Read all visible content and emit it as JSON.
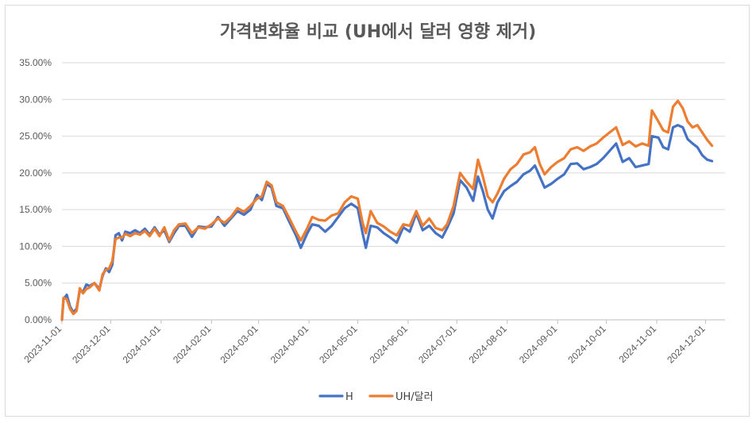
{
  "chart_data": {
    "type": "line",
    "title": "가격변화율 비교 (UH에서 달러 영향 제거)",
    "xlabel": "",
    "ylabel": "",
    "ylim": [
      0,
      0.35
    ],
    "yticks": [
      "0.00%",
      "5.00%",
      "10.00%",
      "15.00%",
      "20.00%",
      "25.00%",
      "30.00%",
      "35.00%"
    ],
    "xticks": [
      "2023-11-01",
      "2023-12-01",
      "2024-01-01",
      "2024-02-01",
      "2024-03-01",
      "2024-04-01",
      "2024-05-01",
      "2024-06-01",
      "2024-07-01",
      "2024-08-01",
      "2024-09-01",
      "2024-10-01",
      "2024-11-01",
      "2024-12-01"
    ],
    "xlim": [
      "2023-11-01",
      "2024-12-13"
    ],
    "grid": true,
    "legend_position": "bottom",
    "series": [
      {
        "name": "H",
        "color": "#4472C4",
        "points": [
          [
            "2023-11-01",
            0.0
          ],
          [
            "2023-11-02",
            0.028
          ],
          [
            "2023-11-04",
            0.034
          ],
          [
            "2023-11-06",
            0.018
          ],
          [
            "2023-11-08",
            0.01
          ],
          [
            "2023-11-10",
            0.015
          ],
          [
            "2023-11-12",
            0.04
          ],
          [
            "2023-11-14",
            0.038
          ],
          [
            "2023-11-16",
            0.048
          ],
          [
            "2023-11-18",
            0.046
          ],
          [
            "2023-11-21",
            0.05
          ],
          [
            "2023-11-24",
            0.042
          ],
          [
            "2023-11-26",
            0.06
          ],
          [
            "2023-11-28",
            0.07
          ],
          [
            "2023-11-30",
            0.065
          ],
          [
            "2023-12-02",
            0.075
          ],
          [
            "2023-12-04",
            0.115
          ],
          [
            "2023-12-06",
            0.118
          ],
          [
            "2023-12-08",
            0.108
          ],
          [
            "2023-12-10",
            0.12
          ],
          [
            "2023-12-13",
            0.118
          ],
          [
            "2023-12-16",
            0.122
          ],
          [
            "2023-12-19",
            0.118
          ],
          [
            "2023-12-22",
            0.124
          ],
          [
            "2023-12-25",
            0.116
          ],
          [
            "2023-12-28",
            0.126
          ],
          [
            "2023-12-31",
            0.116
          ],
          [
            "2024-01-03",
            0.122
          ],
          [
            "2024-01-06",
            0.106
          ],
          [
            "2024-01-09",
            0.118
          ],
          [
            "2024-01-12",
            0.128
          ],
          [
            "2024-01-16",
            0.128
          ],
          [
            "2024-01-20",
            0.113
          ],
          [
            "2024-01-24",
            0.127
          ],
          [
            "2024-01-28",
            0.126
          ],
          [
            "2024-02-01",
            0.127
          ],
          [
            "2024-02-05",
            0.14
          ],
          [
            "2024-02-09",
            0.128
          ],
          [
            "2024-02-13",
            0.138
          ],
          [
            "2024-02-17",
            0.148
          ],
          [
            "2024-02-21",
            0.143
          ],
          [
            "2024-02-25",
            0.15
          ],
          [
            "2024-02-29",
            0.17
          ],
          [
            "2024-03-03",
            0.163
          ],
          [
            "2024-03-06",
            0.185
          ],
          [
            "2024-03-09",
            0.18
          ],
          [
            "2024-03-12",
            0.155
          ],
          [
            "2024-03-16",
            0.152
          ],
          [
            "2024-03-20",
            0.133
          ],
          [
            "2024-03-24",
            0.115
          ],
          [
            "2024-03-27",
            0.098
          ],
          [
            "2024-03-31",
            0.118
          ],
          [
            "2024-04-03",
            0.13
          ],
          [
            "2024-04-07",
            0.128
          ],
          [
            "2024-04-11",
            0.12
          ],
          [
            "2024-04-15",
            0.128
          ],
          [
            "2024-04-19",
            0.14
          ],
          [
            "2024-04-23",
            0.152
          ],
          [
            "2024-04-27",
            0.158
          ],
          [
            "2024-05-01",
            0.152
          ],
          [
            "2024-05-04",
            0.118
          ],
          [
            "2024-05-06",
            0.098
          ],
          [
            "2024-05-09",
            0.128
          ],
          [
            "2024-05-13",
            0.126
          ],
          [
            "2024-05-17",
            0.118
          ],
          [
            "2024-05-21",
            0.112
          ],
          [
            "2024-05-25",
            0.105
          ],
          [
            "2024-05-29",
            0.126
          ],
          [
            "2024-06-02",
            0.12
          ],
          [
            "2024-06-06",
            0.145
          ],
          [
            "2024-06-10",
            0.122
          ],
          [
            "2024-06-14",
            0.128
          ],
          [
            "2024-06-18",
            0.118
          ],
          [
            "2024-06-22",
            0.112
          ],
          [
            "2024-06-25",
            0.125
          ],
          [
            "2024-06-29",
            0.145
          ],
          [
            "2024-07-03",
            0.19
          ],
          [
            "2024-07-07",
            0.18
          ],
          [
            "2024-07-11",
            0.162
          ],
          [
            "2024-07-14",
            0.195
          ],
          [
            "2024-07-17",
            0.175
          ],
          [
            "2024-07-20",
            0.15
          ],
          [
            "2024-07-23",
            0.138
          ],
          [
            "2024-07-26",
            0.16
          ],
          [
            "2024-07-30",
            0.175
          ],
          [
            "2024-08-03",
            0.182
          ],
          [
            "2024-08-07",
            0.188
          ],
          [
            "2024-08-11",
            0.198
          ],
          [
            "2024-08-15",
            0.203
          ],
          [
            "2024-08-18",
            0.21
          ],
          [
            "2024-08-21",
            0.195
          ],
          [
            "2024-08-24",
            0.18
          ],
          [
            "2024-08-28",
            0.185
          ],
          [
            "2024-09-01",
            0.192
          ],
          [
            "2024-09-05",
            0.198
          ],
          [
            "2024-09-09",
            0.212
          ],
          [
            "2024-09-13",
            0.213
          ],
          [
            "2024-09-17",
            0.205
          ],
          [
            "2024-09-21",
            0.208
          ],
          [
            "2024-09-25",
            0.212
          ],
          [
            "2024-09-29",
            0.22
          ],
          [
            "2024-10-03",
            0.23
          ],
          [
            "2024-10-07",
            0.24
          ],
          [
            "2024-10-11",
            0.215
          ],
          [
            "2024-10-15",
            0.22
          ],
          [
            "2024-10-19",
            0.208
          ],
          [
            "2024-10-23",
            0.21
          ],
          [
            "2024-10-27",
            0.212
          ],
          [
            "2024-10-29",
            0.25
          ],
          [
            "2024-11-02",
            0.248
          ],
          [
            "2024-11-05",
            0.235
          ],
          [
            "2024-11-08",
            0.232
          ],
          [
            "2024-11-11",
            0.262
          ],
          [
            "2024-11-14",
            0.265
          ],
          [
            "2024-11-17",
            0.262
          ],
          [
            "2024-11-20",
            0.246
          ],
          [
            "2024-11-23",
            0.24
          ],
          [
            "2024-11-26",
            0.235
          ],
          [
            "2024-11-29",
            0.224
          ],
          [
            "2024-12-02",
            0.218
          ],
          [
            "2024-12-05",
            0.216
          ]
        ]
      },
      {
        "name": "UH/달러",
        "color": "#ED7D31",
        "points": [
          [
            "2023-11-01",
            0.0
          ],
          [
            "2023-11-02",
            0.03
          ],
          [
            "2023-11-04",
            0.028
          ],
          [
            "2023-11-06",
            0.015
          ],
          [
            "2023-11-08",
            0.008
          ],
          [
            "2023-11-10",
            0.012
          ],
          [
            "2023-11-12",
            0.043
          ],
          [
            "2023-11-14",
            0.036
          ],
          [
            "2023-11-16",
            0.042
          ],
          [
            "2023-11-18",
            0.044
          ],
          [
            "2023-11-21",
            0.05
          ],
          [
            "2023-11-24",
            0.04
          ],
          [
            "2023-11-26",
            0.062
          ],
          [
            "2023-11-28",
            0.068
          ],
          [
            "2023-11-30",
            0.07
          ],
          [
            "2023-12-02",
            0.08
          ],
          [
            "2023-12-04",
            0.11
          ],
          [
            "2023-12-06",
            0.112
          ],
          [
            "2023-12-08",
            0.112
          ],
          [
            "2023-12-10",
            0.117
          ],
          [
            "2023-12-13",
            0.114
          ],
          [
            "2023-12-16",
            0.118
          ],
          [
            "2023-12-19",
            0.116
          ],
          [
            "2023-12-22",
            0.121
          ],
          [
            "2023-12-25",
            0.114
          ],
          [
            "2023-12-28",
            0.124
          ],
          [
            "2023-12-31",
            0.114
          ],
          [
            "2024-01-03",
            0.126
          ],
          [
            "2024-01-06",
            0.108
          ],
          [
            "2024-01-09",
            0.122
          ],
          [
            "2024-01-12",
            0.13
          ],
          [
            "2024-01-16",
            0.131
          ],
          [
            "2024-01-20",
            0.118
          ],
          [
            "2024-01-24",
            0.126
          ],
          [
            "2024-01-28",
            0.124
          ],
          [
            "2024-02-01",
            0.13
          ],
          [
            "2024-02-05",
            0.138
          ],
          [
            "2024-02-09",
            0.132
          ],
          [
            "2024-02-13",
            0.14
          ],
          [
            "2024-02-17",
            0.152
          ],
          [
            "2024-02-21",
            0.147
          ],
          [
            "2024-02-25",
            0.155
          ],
          [
            "2024-02-29",
            0.165
          ],
          [
            "2024-03-03",
            0.168
          ],
          [
            "2024-03-06",
            0.188
          ],
          [
            "2024-03-09",
            0.183
          ],
          [
            "2024-03-12",
            0.16
          ],
          [
            "2024-03-16",
            0.155
          ],
          [
            "2024-03-20",
            0.138
          ],
          [
            "2024-03-24",
            0.12
          ],
          [
            "2024-03-27",
            0.108
          ],
          [
            "2024-03-31",
            0.125
          ],
          [
            "2024-04-03",
            0.14
          ],
          [
            "2024-04-07",
            0.136
          ],
          [
            "2024-04-11",
            0.135
          ],
          [
            "2024-04-15",
            0.142
          ],
          [
            "2024-04-19",
            0.145
          ],
          [
            "2024-04-23",
            0.16
          ],
          [
            "2024-04-27",
            0.168
          ],
          [
            "2024-05-01",
            0.165
          ],
          [
            "2024-05-04",
            0.132
          ],
          [
            "2024-05-06",
            0.118
          ],
          [
            "2024-05-09",
            0.148
          ],
          [
            "2024-05-13",
            0.132
          ],
          [
            "2024-05-17",
            0.127
          ],
          [
            "2024-05-21",
            0.12
          ],
          [
            "2024-05-25",
            0.115
          ],
          [
            "2024-05-29",
            0.13
          ],
          [
            "2024-06-02",
            0.128
          ],
          [
            "2024-06-06",
            0.148
          ],
          [
            "2024-06-10",
            0.128
          ],
          [
            "2024-06-14",
            0.138
          ],
          [
            "2024-06-18",
            0.125
          ],
          [
            "2024-06-22",
            0.122
          ],
          [
            "2024-06-25",
            0.13
          ],
          [
            "2024-06-29",
            0.155
          ],
          [
            "2024-07-03",
            0.2
          ],
          [
            "2024-07-07",
            0.188
          ],
          [
            "2024-07-11",
            0.178
          ],
          [
            "2024-07-14",
            0.218
          ],
          [
            "2024-07-17",
            0.195
          ],
          [
            "2024-07-20",
            0.168
          ],
          [
            "2024-07-23",
            0.16
          ],
          [
            "2024-07-26",
            0.172
          ],
          [
            "2024-07-30",
            0.192
          ],
          [
            "2024-08-03",
            0.205
          ],
          [
            "2024-08-07",
            0.212
          ],
          [
            "2024-08-11",
            0.225
          ],
          [
            "2024-08-15",
            0.228
          ],
          [
            "2024-08-18",
            0.235
          ],
          [
            "2024-08-21",
            0.212
          ],
          [
            "2024-08-24",
            0.198
          ],
          [
            "2024-08-28",
            0.208
          ],
          [
            "2024-09-01",
            0.215
          ],
          [
            "2024-09-05",
            0.22
          ],
          [
            "2024-09-09",
            0.232
          ],
          [
            "2024-09-13",
            0.235
          ],
          [
            "2024-09-17",
            0.23
          ],
          [
            "2024-09-21",
            0.236
          ],
          [
            "2024-09-25",
            0.24
          ],
          [
            "2024-09-29",
            0.248
          ],
          [
            "2024-10-03",
            0.255
          ],
          [
            "2024-10-07",
            0.262
          ],
          [
            "2024-10-11",
            0.238
          ],
          [
            "2024-10-15",
            0.243
          ],
          [
            "2024-10-19",
            0.236
          ],
          [
            "2024-10-23",
            0.24
          ],
          [
            "2024-10-27",
            0.237
          ],
          [
            "2024-10-29",
            0.285
          ],
          [
            "2024-11-02",
            0.27
          ],
          [
            "2024-11-05",
            0.258
          ],
          [
            "2024-11-08",
            0.255
          ],
          [
            "2024-11-11",
            0.29
          ],
          [
            "2024-11-14",
            0.298
          ],
          [
            "2024-11-17",
            0.288
          ],
          [
            "2024-11-20",
            0.27
          ],
          [
            "2024-11-23",
            0.262
          ],
          [
            "2024-11-26",
            0.265
          ],
          [
            "2024-11-29",
            0.255
          ],
          [
            "2024-12-02",
            0.245
          ],
          [
            "2024-12-05",
            0.237
          ]
        ]
      }
    ]
  }
}
